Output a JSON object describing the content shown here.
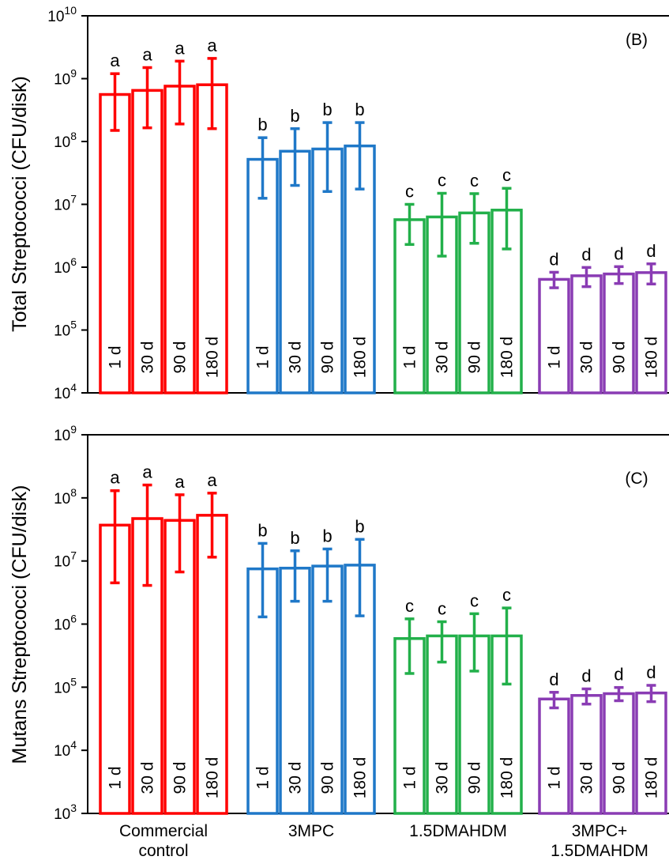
{
  "chart_data": [
    {
      "type": "bar",
      "panel_label": "(B)",
      "ylabel": "Total Streptococci (CFU/disk)",
      "yscale": "log",
      "ylim": [
        10000,
        10000000000
      ],
      "yticks": [
        4,
        5,
        6,
        7,
        8,
        9,
        10
      ],
      "categories": [
        "Commercial control",
        "3MPC",
        "1.5DMAHDM",
        "3MPC+ 1.5DMAHDM"
      ],
      "durations": [
        "1 d",
        "30 d",
        "90 d",
        "180 d"
      ],
      "colors": [
        "#ff0000",
        "#1f78c8",
        "#22b04a",
        "#8a3cb4"
      ],
      "groups": [
        {
          "category": "Commercial control",
          "letter": "a",
          "values": [
            560000000,
            650000000,
            760000000,
            800000000
          ],
          "err_low": [
            150000000,
            165000000,
            190000000,
            160000000
          ],
          "err_high": [
            1200000000,
            1500000000,
            1900000000,
            2100000000
          ]
        },
        {
          "category": "3MPC",
          "letter": "b",
          "values": [
            52000000,
            70000000,
            76000000,
            85000000
          ],
          "err_low": [
            12500000,
            20000000,
            16000000,
            17500000
          ],
          "err_high": [
            115000000,
            160000000,
            200000000,
            200000000
          ]
        },
        {
          "category": "1.5DMAHDM",
          "letter": "c",
          "values": [
            5700000,
            6300000,
            7300000,
            8100000
          ],
          "err_low": [
            2300000,
            1500000,
            2400000,
            1950000
          ],
          "err_high": [
            10000000,
            15000000,
            14800000,
            18000000
          ]
        },
        {
          "category": "3MPC+ 1.5DMAHDM",
          "letter": "d",
          "values": [
            640000,
            730000,
            780000,
            820000
          ],
          "err_low": [
            470000,
            490000,
            550000,
            540000
          ],
          "err_high": [
            830000,
            990000,
            1020000,
            1130000
          ]
        }
      ]
    },
    {
      "type": "bar",
      "panel_label": "(C)",
      "ylabel": "Mutans Streptococci (CFU/disk)",
      "yscale": "log",
      "ylim": [
        1000,
        1000000000
      ],
      "yticks": [
        3,
        4,
        5,
        6,
        7,
        8,
        9
      ],
      "categories": [
        "Commercial control",
        "3MPC",
        "1.5DMAHDM",
        "3MPC+ 1.5DMAHDM"
      ],
      "x_category_labels": [
        [
          "Commercial",
          "control"
        ],
        [
          "3MPC"
        ],
        [
          "1.5DMAHDM"
        ],
        [
          "3MPC+",
          "1.5DMAHDM"
        ]
      ],
      "durations": [
        "1 d",
        "30 d",
        "90 d",
        "180 d"
      ],
      "colors": [
        "#ff0000",
        "#1f78c8",
        "#22b04a",
        "#8a3cb4"
      ],
      "groups": [
        {
          "category": "Commercial control",
          "letter": "a",
          "values": [
            37000000,
            47000000,
            44000000,
            53000000
          ],
          "err_low": [
            4500000,
            4100000,
            6700000,
            11500000
          ],
          "err_high": [
            130000000,
            160000000,
            112000000,
            119000000
          ]
        },
        {
          "category": "3MPC",
          "letter": "b",
          "values": [
            7500000,
            7700000,
            8300000,
            8600000
          ],
          "err_low": [
            1300000,
            2300000,
            2300000,
            1350000
          ],
          "err_high": [
            19000000,
            14500000,
            15500000,
            22000000
          ]
        },
        {
          "category": "1.5DMAHDM",
          "letter": "c",
          "values": [
            590000,
            650000,
            650000,
            650000
          ],
          "err_low": [
            165000,
            250000,
            180000,
            112000
          ],
          "err_high": [
            1210000,
            1090000,
            1460000,
            1800000
          ]
        },
        {
          "category": "3MPC+ 1.5DMAHDM",
          "letter": "d",
          "values": [
            65000,
            74000,
            79000,
            81000
          ],
          "err_low": [
            47000,
            54000,
            61000,
            59000
          ],
          "err_high": [
            83000,
            94000,
            99000,
            107000
          ]
        }
      ]
    }
  ]
}
